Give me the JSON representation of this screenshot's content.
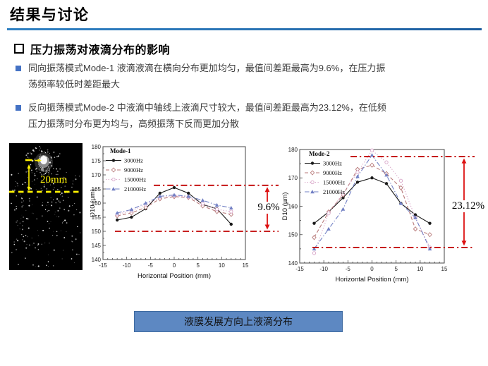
{
  "slide": {
    "title": "结果与讨论",
    "heading": "压力振荡对液滴分布的影响",
    "bullets": [
      {
        "lines": [
          "同向振荡模式Mode-1 液滴液滴在横向分布更加均匀，最值间差距最高为9.6%，在压力振",
          "荡频率较低时差距最大"
        ]
      },
      {
        "lines": [
          "反向振荡模式Mode-2 中液滴中轴线上液滴尺寸较大，最值间差距最高为23.12%，在低频",
          "压力振荡时分布更为均与，高频振荡下反而更加分散"
        ]
      }
    ],
    "banner": "液膜发展方向上液滴分布",
    "colors": {
      "accent": "#2E75B6",
      "bullet_marker": "#4472C4",
      "banner_fill": "#5D88C2",
      "banner_border": "#3E6AA0",
      "annotation_red": "#C00000"
    }
  },
  "spray_image": {
    "scale_label": "20mm",
    "annotation_color": "#FFF200"
  },
  "chart_data": [
    {
      "type": "line",
      "title": "Mode-1",
      "x": [
        -12,
        -9,
        -6,
        -3,
        0,
        3,
        6,
        9,
        12
      ],
      "series": [
        {
          "name": "3000Hz",
          "color": "#1a1a1a",
          "line": "solid",
          "marker": "circle-filled",
          "values": [
            154,
            155,
            158,
            163.5,
            165.5,
            163.5,
            159.5,
            158,
            152.5
          ]
        },
        {
          "name": "9000Hz",
          "color": "#b87a7a",
          "line": "dashed",
          "marker": "diamond-open",
          "values": [
            155.5,
            156.5,
            158.5,
            161.5,
            162.3,
            162,
            159,
            157,
            156
          ]
        },
        {
          "name": "15000Hz",
          "color": "#d9a6c9",
          "line": "dotted",
          "marker": "circle-open",
          "values": [
            156,
            157.3,
            159.5,
            162,
            162.6,
            162.2,
            159.8,
            157.8,
            157
          ]
        },
        {
          "name": "21000Hz",
          "color": "#7280c4",
          "line": "dashdot",
          "marker": "triangle-filled",
          "values": [
            156.5,
            157.7,
            160,
            162.4,
            162.9,
            162.4,
            161,
            159.3,
            158.3
          ]
        }
      ],
      "xlabel": "Horizontal Position (mm)",
      "ylabel": "D10 (µm)",
      "xlim": [
        -15,
        15
      ],
      "ylim": [
        140,
        180
      ],
      "xticks": [
        -15,
        -10,
        -5,
        0,
        5,
        10,
        15
      ],
      "yticks": [
        140,
        145,
        150,
        155,
        160,
        165,
        170,
        175,
        180
      ],
      "legend_position": "top-left",
      "grid": false,
      "annotation": {
        "label": "9.6%",
        "top": 166.3,
        "bottom": 150,
        "color": "#C00000"
      }
    },
    {
      "type": "line",
      "title": "Mode-2",
      "x": [
        -12,
        -9,
        -6,
        -3,
        0,
        3,
        6,
        9,
        12
      ],
      "series": [
        {
          "name": "3000Hz",
          "color": "#1a1a1a",
          "line": "solid",
          "marker": "circle-filled",
          "values": [
            154,
            158,
            163,
            168.5,
            170,
            168,
            161,
            157,
            154
          ]
        },
        {
          "name": "9000Hz",
          "color": "#b87a7a",
          "line": "dashed",
          "marker": "diamond-open",
          "values": [
            149,
            158,
            164,
            173,
            174.5,
            171.5,
            166.5,
            152,
            150
          ]
        },
        {
          "name": "15000Hz",
          "color": "#d9a6c9",
          "line": "dotted",
          "marker": "circle-open",
          "values": [
            143.5,
            157.5,
            164.5,
            172,
            179.7,
            175.5,
            169,
            156,
            145.5
          ]
        },
        {
          "name": "21000Hz",
          "color": "#7280c4",
          "line": "dashdot",
          "marker": "triangle-filled",
          "values": [
            145,
            152,
            159,
            170.5,
            178,
            171,
            161,
            156,
            145
          ]
        }
      ],
      "xlabel": "Horizontal Position (mm)",
      "ylabel": "D10 (µm)",
      "xlim": [
        -15,
        15
      ],
      "ylim": [
        140,
        180
      ],
      "xticks": [
        -15,
        -10,
        -5,
        0,
        5,
        10,
        15
      ],
      "yticks": [
        140,
        150,
        160,
        170,
        180
      ],
      "legend_position": "top-left",
      "grid": false,
      "annotation": {
        "label": "23.12%",
        "top": 177.5,
        "bottom": 145.5,
        "color": "#C00000"
      }
    }
  ]
}
